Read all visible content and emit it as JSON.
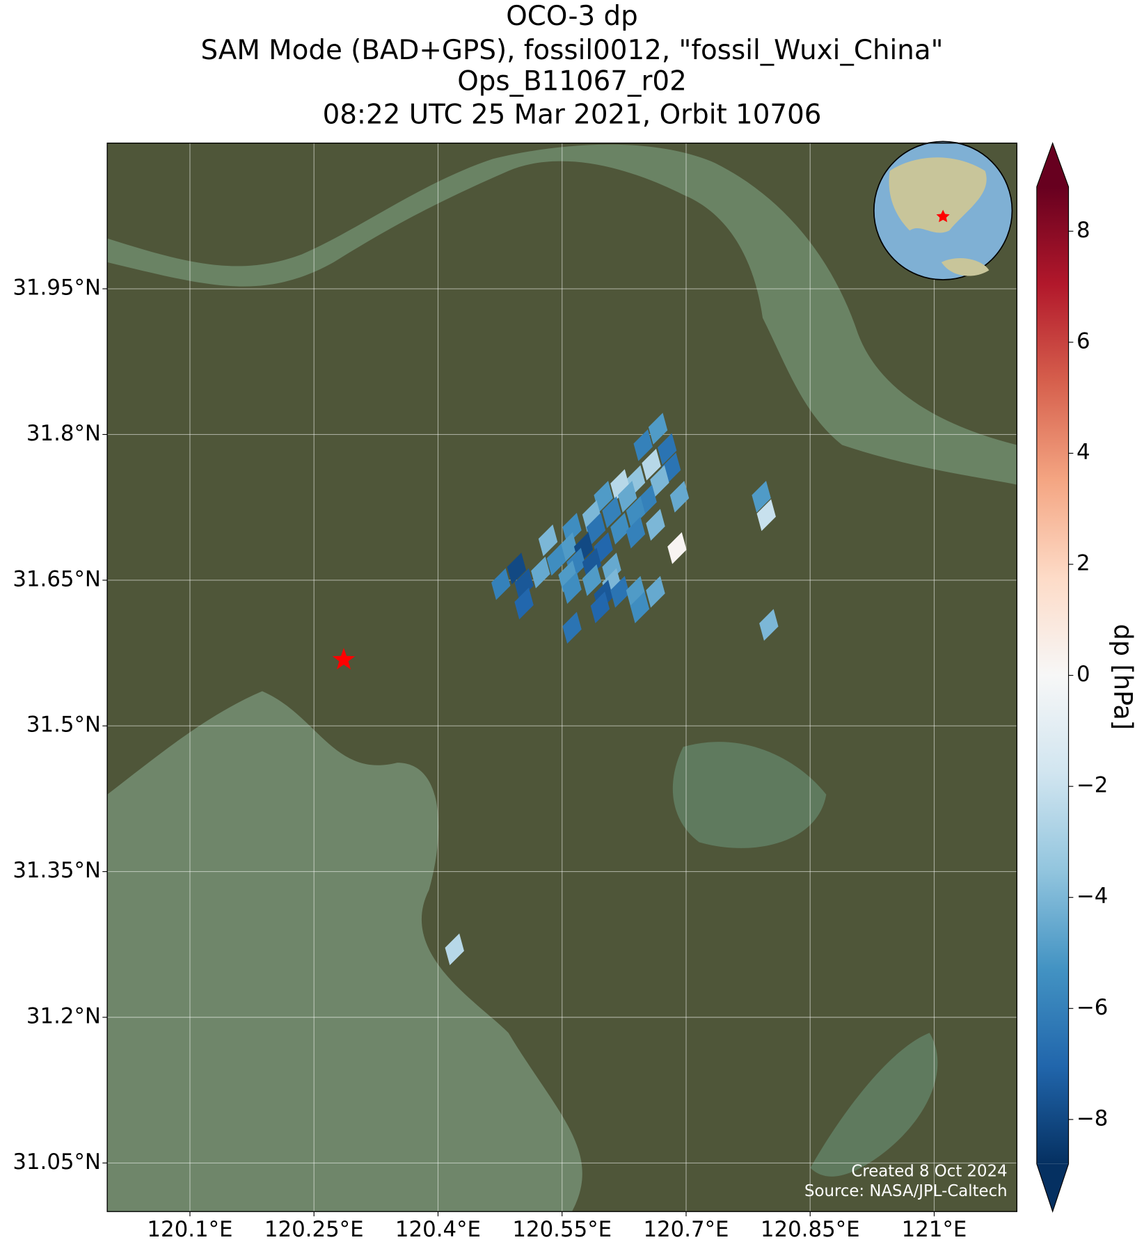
{
  "chart_data": {
    "type": "map",
    "title": [
      "OCO-3 dp",
      "SAM Mode (BAD+GPS), fossil0012, \"fossil_Wuxi_China\"",
      "Ops_B11067_r02",
      "08:22 UTC 25 Mar 2021, Orbit 10706"
    ],
    "xlim": [
      120.0,
      121.1
    ],
    "ylim": [
      31.0,
      32.1
    ],
    "xticks": [
      {
        "value": 120.1,
        "label": "120.1°E"
      },
      {
        "value": 120.25,
        "label": "120.25°E"
      },
      {
        "value": 120.4,
        "label": "120.4°E"
      },
      {
        "value": 120.55,
        "label": "120.55°E"
      },
      {
        "value": 120.7,
        "label": "120.7°E"
      },
      {
        "value": 120.85,
        "label": "120.85°E"
      },
      {
        "value": 121,
        "label": "121°E"
      }
    ],
    "yticks": [
      {
        "value": 31.05,
        "label": "31.05°N"
      },
      {
        "value": 31.2,
        "label": "31.2°N"
      },
      {
        "value": 31.35,
        "label": "31.35°N"
      },
      {
        "value": 31.5,
        "label": "31.5°N"
      },
      {
        "value": 31.65,
        "label": "31.65°N"
      },
      {
        "value": 31.8,
        "label": "31.8°N"
      },
      {
        "value": 31.95,
        "label": "31.95°N"
      }
    ],
    "grid": true,
    "footprints": {
      "lon": [
        120.666,
        120.648,
        120.677,
        120.658,
        120.682,
        120.639,
        120.668,
        120.692,
        120.62,
        120.6,
        120.629,
        120.653,
        120.61,
        120.639,
        120.663,
        120.586,
        120.562,
        120.591,
        120.62,
        120.639,
        120.533,
        120.557,
        120.576,
        120.6,
        120.543,
        120.567,
        120.586,
        120.61,
        120.524,
        120.557,
        120.586,
        120.61,
        120.495,
        120.476,
        120.504,
        120.562,
        120.6,
        120.62,
        120.639,
        120.663,
        120.504,
        120.596,
        120.644,
        120.562,
        120.689,
        120.791,
        120.797,
        120.8,
        120.42
      ],
      "lat": [
        31.806,
        31.789,
        31.785,
        31.769,
        31.765,
        31.752,
        31.752,
        31.736,
        31.748,
        31.736,
        31.736,
        31.732,
        31.72,
        31.72,
        31.707,
        31.716,
        31.703,
        31.703,
        31.703,
        31.699,
        31.691,
        31.683,
        31.683,
        31.683,
        31.671,
        31.667,
        31.667,
        31.662,
        31.658,
        31.654,
        31.65,
        31.646,
        31.662,
        31.646,
        31.646,
        31.642,
        31.634,
        31.638,
        31.638,
        31.638,
        31.626,
        31.622,
        31.622,
        31.601,
        31.683,
        31.736,
        31.717,
        31.604,
        31.27
      ],
      "dp": [
        -5,
        -6,
        -6.5,
        -2.5,
        -6.5,
        -3.5,
        -4,
        -4.5,
        -2.5,
        -5,
        -4.5,
        -6,
        -6,
        -5.5,
        -4,
        -4,
        -5.5,
        -6.5,
        -5.5,
        -6,
        -4,
        -5,
        -8,
        -7,
        -5.5,
        -6,
        -7.5,
        -4.5,
        -4.5,
        -5,
        -5,
        -4,
        -8,
        -6,
        -7.5,
        -5.5,
        -7.5,
        -6.5,
        -5,
        -4.5,
        -7,
        -7,
        -5.5,
        -6.5,
        0.2,
        -5,
        -2,
        -4,
        -2.5
      ]
    },
    "target": {
      "lon": 120.286,
      "lat": 31.568,
      "color": "#ff0000"
    },
    "colorbar": {
      "label": "dp [hPa]",
      "lim": [
        -8.8,
        8.8
      ],
      "extend": "both",
      "colors": [
        "#053061",
        "#2166ac",
        "#4393c3",
        "#92c5de",
        "#d1e5f0",
        "#f7f7f7",
        "#fddbc7",
        "#f4a582",
        "#d6604d",
        "#b2182b",
        "#67001f"
      ],
      "ticks": [
        {
          "value": -8,
          "label": "−8"
        },
        {
          "value": -6,
          "label": "−6"
        },
        {
          "value": -4,
          "label": "−4"
        },
        {
          "value": -2,
          "label": "−2"
        },
        0,
        2,
        4,
        6,
        8
      ]
    },
    "credits": [
      "Created 8 Oct 2024",
      "Source: NASA/JPL-Caltech"
    ]
  }
}
